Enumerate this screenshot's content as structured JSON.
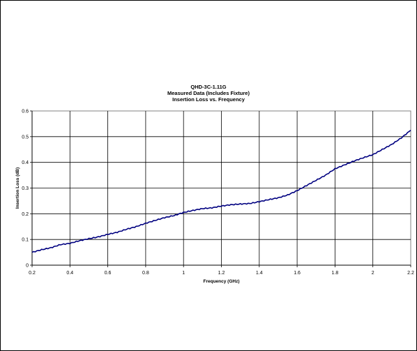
{
  "chart_data": {
    "type": "line",
    "title_lines": [
      "QHD-3C-1.11G",
      "Measured Data (Includes Fixture)",
      "Insertion Loss vs. Frequency"
    ],
    "xlabel": "Frequency (GHz)",
    "ylabel": "Insertion Loss (dB)",
    "xlim": [
      0.2,
      2.2
    ],
    "ylim": [
      0,
      0.6
    ],
    "x_ticks": [
      "0.2",
      "0.4",
      "0.6",
      "0.8",
      "1",
      "1.2",
      "1.4",
      "1.6",
      "1.8",
      "2",
      "2.2"
    ],
    "y_ticks": [
      "0",
      "0.1",
      "0.2",
      "0.3",
      "0.4",
      "0.5",
      "0.6"
    ],
    "grid": true,
    "legend": "none",
    "line_color": "#000080",
    "series": [
      {
        "x": [
          0.2,
          0.25,
          0.3,
          0.35,
          0.4,
          0.45,
          0.5,
          0.55,
          0.6,
          0.65,
          0.7,
          0.75,
          0.8,
          0.85,
          0.9,
          0.95,
          1.0,
          1.05,
          1.1,
          1.15,
          1.2,
          1.25,
          1.3,
          1.35,
          1.4,
          1.45,
          1.5,
          1.55,
          1.6,
          1.65,
          1.7,
          1.75,
          1.8,
          1.85,
          1.9,
          1.95,
          2.0,
          2.05,
          2.1,
          2.15,
          2.2
        ],
        "values": [
          0.05,
          0.06,
          0.068,
          0.08,
          0.085,
          0.095,
          0.103,
          0.11,
          0.12,
          0.128,
          0.14,
          0.15,
          0.163,
          0.174,
          0.185,
          0.193,
          0.205,
          0.213,
          0.22,
          0.223,
          0.23,
          0.235,
          0.238,
          0.24,
          0.247,
          0.255,
          0.262,
          0.273,
          0.29,
          0.31,
          0.33,
          0.35,
          0.375,
          0.39,
          0.405,
          0.418,
          0.43,
          0.45,
          0.47,
          0.495,
          0.525
        ]
      }
    ]
  }
}
